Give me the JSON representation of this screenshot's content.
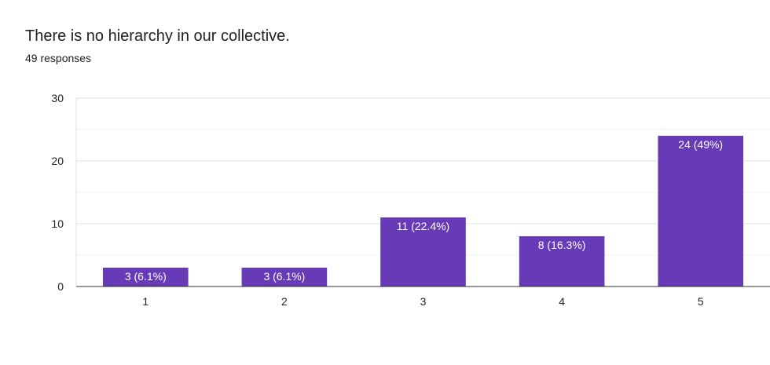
{
  "header": {
    "title": "There is no hierarchy in our collective.",
    "responses": "49 responses"
  },
  "colors": {
    "bar": "#673ab7",
    "grid_major": "#e0e0e0",
    "grid_minor": "#f1f1f1",
    "axis": "#333333",
    "label_text": "#ffffff"
  },
  "chart_data": {
    "type": "bar",
    "title": "There is no hierarchy in our collective.",
    "subtitle": "49 responses",
    "categories": [
      "1",
      "2",
      "3",
      "4",
      "5"
    ],
    "values": [
      3,
      3,
      11,
      8,
      24
    ],
    "data_labels": [
      "3 (6.1%)",
      "3 (6.1%)",
      "11 (22.4%)",
      "8 (16.3%)",
      "24 (49%)"
    ],
    "xlabel": "",
    "ylabel": "",
    "ylim": [
      0,
      30
    ],
    "yticks": [
      "0",
      "10",
      "20",
      "30"
    ],
    "grid": true,
    "legend": "none"
  }
}
